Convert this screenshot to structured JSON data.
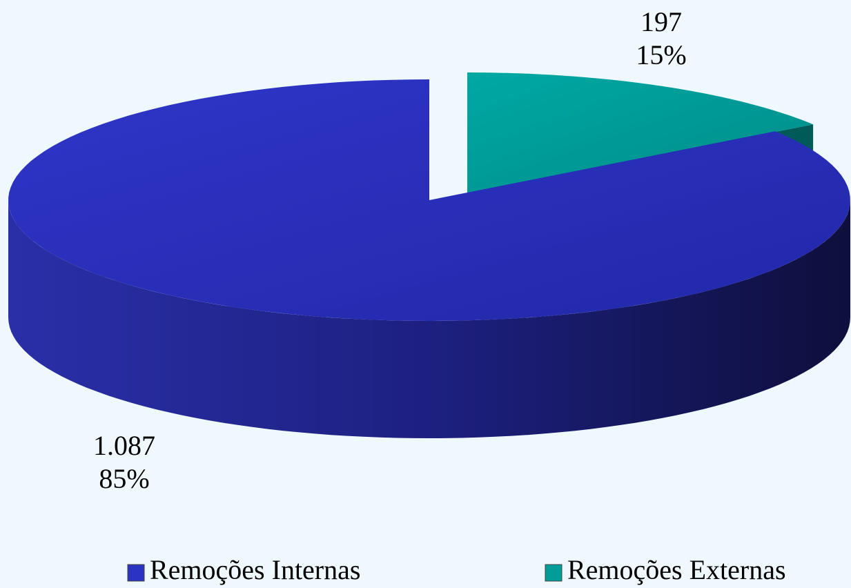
{
  "chart_data": {
    "type": "pie3d",
    "categories": [
      "Remoções Internas",
      "Remoções Externas"
    ],
    "values": [
      1087,
      197
    ],
    "value_labels": [
      "1.087",
      "197"
    ],
    "percentages": [
      85,
      15
    ],
    "percentage_labels": [
      "85%",
      "15%"
    ],
    "colors": [
      "#2b33c2",
      "#009c98"
    ],
    "legend": "bottom"
  }
}
